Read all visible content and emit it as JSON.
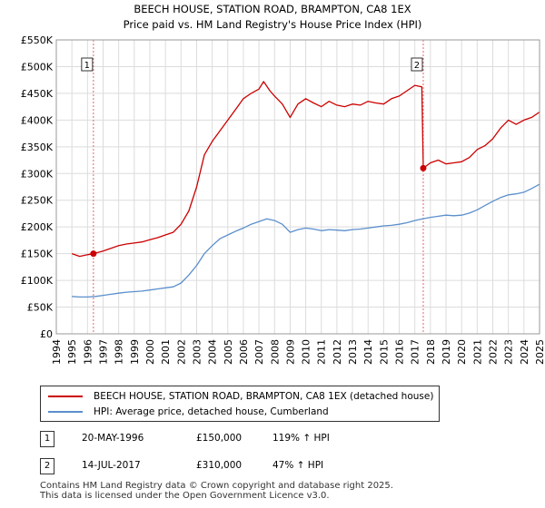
{
  "chart_data": {
    "type": "line",
    "title": "BEECH HOUSE, STATION ROAD, BRAMPTON, CA8 1EX",
    "subtitle": "Price paid vs. HM Land Registry's House Price Index (HPI)",
    "xlabel": "",
    "ylabel": "",
    "xlim": [
      1994,
      2025
    ],
    "ylim": [
      0,
      550000
    ],
    "yticks": [
      0,
      50000,
      100000,
      150000,
      200000,
      250000,
      300000,
      350000,
      400000,
      450000,
      500000,
      550000
    ],
    "ytick_labels": [
      "£0",
      "£50K",
      "£100K",
      "£150K",
      "£200K",
      "£250K",
      "£300K",
      "£350K",
      "£400K",
      "£450K",
      "£500K",
      "£550K"
    ],
    "xticks": [
      1994,
      1995,
      1996,
      1997,
      1998,
      1999,
      2000,
      2001,
      2002,
      2003,
      2004,
      2005,
      2006,
      2007,
      2008,
      2009,
      2010,
      2011,
      2012,
      2013,
      2014,
      2015,
      2016,
      2017,
      2018,
      2019,
      2020,
      2021,
      2022,
      2023,
      2024,
      2025
    ],
    "xtick_labels": [
      "1994",
      "1995",
      "1996",
      "1997",
      "1998",
      "1999",
      "2000",
      "2001",
      "2002",
      "2003",
      "2004",
      "2005",
      "2006",
      "2007",
      "2008",
      "2009",
      "2010",
      "2011",
      "2012",
      "2013",
      "2014",
      "2015",
      "2016",
      "2017",
      "2018",
      "2019",
      "2020",
      "2021",
      "2022",
      "2023",
      "2024",
      "2025"
    ],
    "grid": true,
    "series": [
      {
        "name": "BEECH HOUSE, STATION ROAD, BRAMPTON, CA8 1EX (detached house)",
        "color": "#cc0000",
        "x": [
          1995.0,
          1995.5,
          1996.0,
          1996.38,
          1997.0,
          1997.5,
          1998.0,
          1998.5,
          1999.0,
          1999.5,
          2000.0,
          2000.5,
          2001.0,
          2001.5,
          2002.0,
          2002.5,
          2003.0,
          2003.5,
          2004.0,
          2004.5,
          2005.0,
          2005.5,
          2006.0,
          2006.5,
          2007.0,
          2007.3,
          2007.7,
          2008.0,
          2008.5,
          2009.0,
          2009.5,
          2010.0,
          2010.5,
          2011.0,
          2011.5,
          2012.0,
          2012.5,
          2013.0,
          2013.5,
          2014.0,
          2014.5,
          2015.0,
          2015.5,
          2016.0,
          2016.5,
          2017.0,
          2017.45,
          2017.54,
          2018.0,
          2018.5,
          2019.0,
          2019.5,
          2020.0,
          2020.5,
          2021.0,
          2021.5,
          2022.0,
          2022.5,
          2023.0,
          2023.5,
          2024.0,
          2024.5,
          2025.0
        ],
        "values": [
          150000,
          145000,
          148000,
          150000,
          155000,
          160000,
          165000,
          168000,
          170000,
          172000,
          176000,
          180000,
          185000,
          190000,
          205000,
          230000,
          275000,
          335000,
          360000,
          380000,
          400000,
          420000,
          440000,
          450000,
          458000,
          472000,
          455000,
          445000,
          430000,
          405000,
          430000,
          440000,
          432000,
          425000,
          435000,
          428000,
          425000,
          430000,
          428000,
          435000,
          432000,
          430000,
          440000,
          445000,
          455000,
          465000,
          462000,
          310000,
          320000,
          325000,
          318000,
          320000,
          322000,
          330000,
          345000,
          352000,
          365000,
          385000,
          400000,
          392000,
          400000,
          405000,
          415000
        ]
      },
      {
        "name": "HPI: Average price, detached house, Cumberland",
        "color": "#5b8fcc",
        "x": [
          1995.0,
          1995.5,
          1996.0,
          1996.5,
          1997.0,
          1997.5,
          1998.0,
          1998.5,
          1999.0,
          1999.5,
          2000.0,
          2000.5,
          2001.0,
          2001.5,
          2002.0,
          2002.5,
          2003.0,
          2003.5,
          2004.0,
          2004.5,
          2005.0,
          2005.5,
          2006.0,
          2006.5,
          2007.0,
          2007.5,
          2008.0,
          2008.5,
          2009.0,
          2009.5,
          2010.0,
          2010.5,
          2011.0,
          2011.5,
          2012.0,
          2012.5,
          2013.0,
          2013.5,
          2014.0,
          2014.5,
          2015.0,
          2015.5,
          2016.0,
          2016.5,
          2017.0,
          2017.5,
          2018.0,
          2018.5,
          2019.0,
          2019.5,
          2020.0,
          2020.5,
          2021.0,
          2021.5,
          2022.0,
          2022.5,
          2023.0,
          2023.5,
          2024.0,
          2024.5,
          2025.0
        ],
        "values": [
          70000,
          69000,
          69000,
          70000,
          72000,
          74000,
          76000,
          78000,
          79000,
          80000,
          82000,
          84000,
          86000,
          88000,
          95000,
          110000,
          128000,
          150000,
          165000,
          178000,
          185000,
          192000,
          198000,
          205000,
          210000,
          215000,
          212000,
          205000,
          190000,
          195000,
          198000,
          196000,
          193000,
          195000,
          194000,
          193000,
          195000,
          196000,
          198000,
          200000,
          202000,
          203000,
          205000,
          208000,
          212000,
          215000,
          218000,
          220000,
          222000,
          221000,
          222000,
          226000,
          232000,
          240000,
          248000,
          255000,
          260000,
          262000,
          265000,
          272000,
          280000
        ]
      }
    ],
    "annotations": [
      {
        "label": "1",
        "x": 1996.38,
        "y": 150000
      },
      {
        "label": "2",
        "x": 2017.54,
        "y": 310000
      }
    ]
  },
  "legend": {
    "property_label": "BEECH HOUSE, STATION ROAD, BRAMPTON, CA8 1EX (detached house)",
    "hpi_label": "HPI: Average price, detached house, Cumberland",
    "property_color": "#cc0000",
    "hpi_color": "#5b8fcc"
  },
  "transactions": [
    {
      "num": "1",
      "date": "20-MAY-1996",
      "price": "£150,000",
      "hpi_change": "119% ↑ HPI"
    },
    {
      "num": "2",
      "date": "14-JUL-2017",
      "price": "£310,000",
      "hpi_change": "47% ↑ HPI"
    }
  ],
  "footer": {
    "line1": "Contains HM Land Registry data © Crown copyright and database right 2025.",
    "line2": "This data is licensed under the Open Government Licence v3.0."
  }
}
